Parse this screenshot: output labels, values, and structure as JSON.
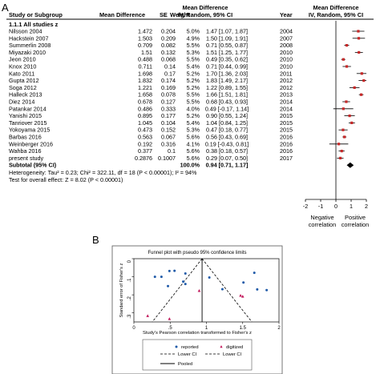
{
  "panels": {
    "a_label": "A",
    "b_label": "B"
  },
  "forest": {
    "headers": {
      "study": "Study or Subgroup",
      "md": "Mean Difference",
      "se": "SE",
      "weight": "Weight",
      "ci_group_line1": "Mean Difference",
      "ci_group_line2": "IV, Random, 95% CI",
      "year": "Year",
      "plot_group_line1": "Mean Difference",
      "plot_group_line2": "IV, Random, 95% CI"
    },
    "subgroup_title": "1.1.1 All studies z",
    "studies": [
      {
        "name": "Nilsson 2004",
        "md": "1.472",
        "se": "0.204",
        "weight": "5.0%",
        "ci": "1.47 [1.07, 1.87]",
        "year": "2004",
        "est": 1.47,
        "lo": 1.07,
        "hi": 1.87
      },
      {
        "name": "Hackstein 2007",
        "md": "1.503",
        "se": "0.209",
        "weight": "4.9%",
        "ci": "1.50 [1.09, 1.91]",
        "year": "2007",
        "est": 1.5,
        "lo": 1.09,
        "hi": 1.91
      },
      {
        "name": "Summerlin 2008",
        "md": "0.709",
        "se": "0.082",
        "weight": "5.5%",
        "ci": "0.71 [0.55, 0.87]",
        "year": "2008",
        "est": 0.71,
        "lo": 0.55,
        "hi": 0.87
      },
      {
        "name": "Miyazaki 2010",
        "md": "1.51",
        "se": "0.132",
        "weight": "5.3%",
        "ci": "1.51 [1.25, 1.77]",
        "year": "2010",
        "est": 1.51,
        "lo": 1.25,
        "hi": 1.77
      },
      {
        "name": "Jeon 2010",
        "md": "0.488",
        "se": "0.068",
        "weight": "5.5%",
        "ci": "0.49 [0.35, 0.62]",
        "year": "2010",
        "est": 0.49,
        "lo": 0.35,
        "hi": 0.62
      },
      {
        "name": "Knox 2010",
        "md": "0.711",
        "se": "0.14",
        "weight": "5.4%",
        "ci": "0.71 [0.44, 0.99]",
        "year": "2010",
        "est": 0.71,
        "lo": 0.44,
        "hi": 0.99
      },
      {
        "name": "Kato 2011",
        "md": "1.698",
        "se": "0.17",
        "weight": "5.2%",
        "ci": "1.70 [1.36, 2.03]",
        "year": "2011",
        "est": 1.7,
        "lo": 1.36,
        "hi": 2.03
      },
      {
        "name": "Gupta 2012",
        "md": "1.832",
        "se": "0.174",
        "weight": "5.2%",
        "ci": "1.83 [1.49, 2.17]",
        "year": "2012",
        "est": 1.83,
        "lo": 1.49,
        "hi": 2.17
      },
      {
        "name": "Soga 2012",
        "md": "1.221",
        "se": "0.169",
        "weight": "5.2%",
        "ci": "1.22 [0.89, 1.55]",
        "year": "2012",
        "est": 1.22,
        "lo": 0.89,
        "hi": 1.55
      },
      {
        "name": "Halleck 2013",
        "md": "1.658",
        "se": "0.078",
        "weight": "5.5%",
        "ci": "1.66 [1.51, 1.81]",
        "year": "2013",
        "est": 1.66,
        "lo": 1.51,
        "hi": 1.81
      },
      {
        "name": "Diez 2014",
        "md": "0.678",
        "se": "0.127",
        "weight": "5.5%",
        "ci": "0.68 [0.43, 0.93]",
        "year": "2014",
        "est": 0.68,
        "lo": 0.43,
        "hi": 0.93
      },
      {
        "name": "Patankar 2014",
        "md": "0.486",
        "se": "0.333",
        "weight": "4.0%",
        "ci": "0.49 [-0.17, 1.14]",
        "year": "2014",
        "est": 0.49,
        "lo": -0.17,
        "hi": 1.14
      },
      {
        "name": "Yanishi 2015",
        "md": "0.895",
        "se": "0.177",
        "weight": "5.2%",
        "ci": "0.90 [0.55, 1.24]",
        "year": "2015",
        "est": 0.9,
        "lo": 0.55,
        "hi": 1.24
      },
      {
        "name": "Tanriover 2015",
        "md": "1.045",
        "se": "0.104",
        "weight": "5.4%",
        "ci": "1.04 [0.84, 1.25]",
        "year": "2015",
        "est": 1.04,
        "lo": 0.84,
        "hi": 1.25
      },
      {
        "name": "Yokoyama 2015",
        "md": "0.473",
        "se": "0.152",
        "weight": "5.3%",
        "ci": "0.47 [0.18, 0.77]",
        "year": "2015",
        "est": 0.47,
        "lo": 0.18,
        "hi": 0.77
      },
      {
        "name": "Barbas 2016",
        "md": "0.563",
        "se": "0.067",
        "weight": "5.6%",
        "ci": "0.56 [0.43, 0.69]",
        "year": "2016",
        "est": 0.56,
        "lo": 0.43,
        "hi": 0.69
      },
      {
        "name": "Weinberger 2016",
        "md": "0.192",
        "se": "0.316",
        "weight": "4.1%",
        "ci": "0.19 [-0.43, 0.81]",
        "year": "2016",
        "est": 0.19,
        "lo": -0.43,
        "hi": 0.81
      },
      {
        "name": "Wahba 2016",
        "md": "0.377",
        "se": "0.1",
        "weight": "5.6%",
        "ci": "0.38 [0.18, 0.57]",
        "year": "2016",
        "est": 0.38,
        "lo": 0.18,
        "hi": 0.57
      },
      {
        "name": "present study",
        "md": "0.2876",
        "se": "0.1007",
        "weight": "5.6%",
        "ci": "0.29 [0.07, 0.50]",
        "year": "2017",
        "est": 0.29,
        "lo": 0.07,
        "hi": 0.5
      }
    ],
    "subtotal": {
      "label": "Subtotal (95% CI)",
      "weight": "100.0%",
      "ci": "0.94 [0.71, 1.17]",
      "est": 0.94,
      "lo": 0.71,
      "hi": 1.17
    },
    "heterogeneity": "Heterogeneity: Tau² = 0.23; Chi² = 322.11, df = 18 (P < 0.00001); I² = 94%",
    "overall_effect": "Test for overall effect: Z = 8.02 (P < 0.00001)",
    "axis_ticks": [
      -2,
      -1,
      0,
      1,
      2
    ],
    "axis_labels": [
      "-2",
      "-1",
      "0",
      "1",
      "2"
    ],
    "left_label_1": "Negative",
    "left_label_2": "correlation",
    "right_label_1": "Positive",
    "right_label_2": "correlation"
  },
  "chart_data": [
    {
      "type": "forest",
      "x_range": [
        -2,
        2
      ],
      "ticks": [
        -2,
        -1,
        0,
        1,
        2
      ],
      "pooled": {
        "est": 0.94,
        "lo": 0.71,
        "hi": 1.17
      }
    },
    {
      "type": "scatter",
      "title": "Funnel plot with pseudo 95% confidence limits",
      "xlabel": "Study's Pearson correlation transformed to Fisher's z",
      "ylabel": "Standard error of Fisher's z",
      "xlim": [
        0,
        2
      ],
      "ylim": [
        0.35,
        0
      ],
      "xticks": [
        0,
        0.5,
        1,
        1.5,
        2
      ],
      "yticks": [
        0,
        0.1,
        0.2,
        0.3
      ],
      "xtick_labels": [
        "0",
        ".5",
        "1",
        "1.5",
        "2"
      ],
      "ytick_labels": [
        "0",
        ".1",
        ".2",
        ".3"
      ],
      "pooled_x": 0.94,
      "legend": [
        {
          "label": "reported",
          "symbol": "dot",
          "color": "#1f5aa8"
        },
        {
          "label": "digitized",
          "symbol": "triangle",
          "color": "#c2185b"
        },
        {
          "label": "Lower CI",
          "symbol": "dash"
        },
        {
          "label": "Lower CI",
          "symbol": "dash"
        },
        {
          "label": "Pooled",
          "symbol": "line"
        }
      ],
      "reported_points": [
        [
          0.49,
          0.068
        ],
        [
          0.56,
          0.067
        ],
        [
          0.71,
          0.082
        ],
        [
          1.04,
          0.104
        ],
        [
          0.38,
          0.1
        ],
        [
          0.29,
          0.1
        ],
        [
          0.71,
          0.14
        ],
        [
          0.47,
          0.152
        ],
        [
          0.68,
          0.127
        ],
        [
          1.51,
          0.132
        ],
        [
          1.22,
          0.169
        ],
        [
          1.7,
          0.17
        ],
        [
          1.83,
          0.174
        ],
        [
          1.66,
          0.078
        ]
      ],
      "digitized_points": [
        [
          0.9,
          0.177
        ],
        [
          1.47,
          0.204
        ],
        [
          1.5,
          0.209
        ],
        [
          0.19,
          0.316
        ],
        [
          0.49,
          0.333
        ]
      ]
    }
  ]
}
